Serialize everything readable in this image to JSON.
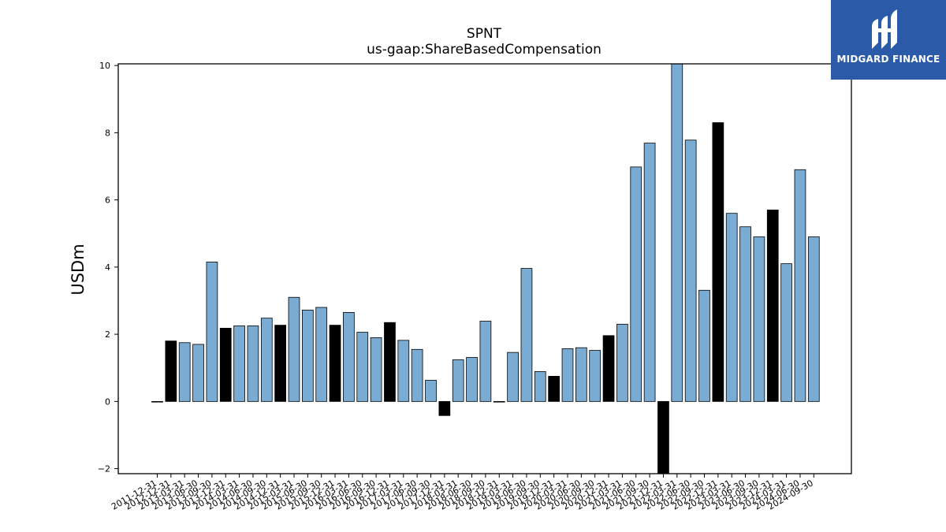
{
  "chart_data": {
    "type": "bar",
    "title": "SPNT",
    "subtitle": "us-gaap:ShareBasedCompensation",
    "xlabel": "",
    "ylabel": "USDm",
    "ylim": [
      -2.15,
      10.05
    ],
    "yticks": [
      -2,
      0,
      2,
      4,
      6,
      8,
      10
    ],
    "ytick_labels": [
      "−2",
      "0",
      "2",
      "4",
      "6",
      "8",
      "10"
    ],
    "grid": false,
    "legend": "none",
    "colors": {
      "quarterly": "#7aabd2",
      "annual": "#000000",
      "edge": "#000000"
    },
    "categories": [
      "2011-12-31",
      "2012-12-31",
      "2013-03-31",
      "2013-06-30",
      "2013-09-30",
      "2013-12-31",
      "2014-03-31",
      "2014-06-30",
      "2014-09-30",
      "2014-12-31",
      "2015-03-31",
      "2015-06-30",
      "2015-09-30",
      "2015-12-31",
      "2016-03-31",
      "2016-06-30",
      "2016-09-30",
      "2016-12-31",
      "2017-03-31",
      "2017-06-30",
      "2017-09-30",
      "2017-12-31",
      "2018-03-31",
      "2018-06-30",
      "2018-09-30",
      "2018-12-31",
      "2019-03-31",
      "2019-06-30",
      "2019-09-30",
      "2019-12-31",
      "2020-03-31",
      "2020-06-30",
      "2020-09-30",
      "2020-12-31",
      "2021-03-31",
      "2021-06-30",
      "2021-09-30",
      "2021-12-31",
      "2022-03-31",
      "2022-06-30",
      "2022-09-30",
      "2022-12-31",
      "2023-03-31",
      "2023-06-30",
      "2023-09-30",
      "2023-12-31",
      "2024-03-31",
      "2024-06-30",
      "2024-09-30"
    ],
    "values": [
      0.0,
      1.8,
      1.75,
      1.7,
      4.15,
      2.18,
      2.25,
      2.25,
      2.48,
      2.27,
      3.1,
      2.72,
      2.8,
      2.27,
      2.65,
      2.06,
      1.9,
      2.35,
      1.82,
      1.55,
      0.63,
      -0.42,
      1.24,
      1.31,
      2.39,
      0.0,
      1.46,
      3.96,
      0.89,
      0.75,
      1.57,
      1.6,
      1.52,
      1.96,
      2.3,
      6.98,
      7.69,
      -2.15,
      10.05,
      7.78,
      3.31,
      8.3,
      5.6,
      5.2,
      4.9,
      5.7,
      4.1,
      6.9,
      4.9
    ],
    "kind": [
      "Q",
      "A",
      "Q",
      "Q",
      "Q",
      "A",
      "Q",
      "Q",
      "Q",
      "A",
      "Q",
      "Q",
      "Q",
      "A",
      "Q",
      "Q",
      "Q",
      "A",
      "Q",
      "Q",
      "Q",
      "A",
      "Q",
      "Q",
      "Q",
      "A",
      "Q",
      "Q",
      "Q",
      "A",
      "Q",
      "Q",
      "Q",
      "A",
      "Q",
      "Q",
      "Q",
      "A",
      "Q",
      "Q",
      "Q",
      "A",
      "Q",
      "Q",
      "Q",
      "A",
      "Q",
      "Q",
      "Q"
    ]
  },
  "logo": {
    "text": "MIDGARD FINANCE"
  }
}
